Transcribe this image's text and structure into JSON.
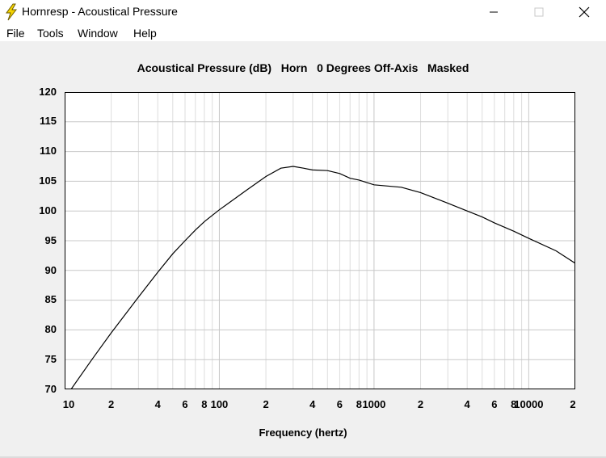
{
  "window": {
    "title": "Hornresp - Acoustical Pressure",
    "icon": "lightning-bolt-icon",
    "controls": [
      "minimize-icon",
      "maximize-icon",
      "close-icon"
    ]
  },
  "menu": {
    "items": [
      "File",
      "Tools",
      "Window",
      "Help"
    ]
  },
  "chart_data": {
    "type": "line",
    "title": "Acoustical Pressure (dB)   Horn   0 Degrees Off-Axis   Masked",
    "xlabel": "Frequency (hertz)",
    "ylabel": "",
    "x_scale": "log",
    "xlim": [
      10,
      20000
    ],
    "ylim": [
      70,
      120
    ],
    "y_ticks": [
      "120",
      "115",
      "110",
      "105",
      "100",
      "95",
      "90",
      "85",
      "80",
      "75",
      "70"
    ],
    "x_tick_labels": [
      {
        "value": 10,
        "label": "10"
      },
      {
        "value": 20,
        "label": "2"
      },
      {
        "value": 40,
        "label": "4"
      },
      {
        "value": 60,
        "label": "6"
      },
      {
        "value": 80,
        "label": "8"
      },
      {
        "value": 100,
        "label": "100"
      },
      {
        "value": 200,
        "label": "2"
      },
      {
        "value": 400,
        "label": "4"
      },
      {
        "value": 600,
        "label": "6"
      },
      {
        "value": 800,
        "label": "8"
      },
      {
        "value": 1000,
        "label": "1000"
      },
      {
        "value": 2000,
        "label": "2"
      },
      {
        "value": 4000,
        "label": "4"
      },
      {
        "value": 6000,
        "label": "6"
      },
      {
        "value": 8000,
        "label": "8"
      },
      {
        "value": 10000,
        "label": "10000"
      },
      {
        "value": 20000,
        "label": "2"
      }
    ],
    "grid": true,
    "line_color": "#000000",
    "series": [
      {
        "x": [
          11,
          15,
          20,
          30,
          40,
          50,
          60,
          70,
          80,
          100,
          150,
          200,
          250,
          300,
          350,
          400,
          500,
          600,
          700,
          800,
          1000,
          1500,
          2000,
          3000,
          4000,
          5000,
          6000,
          8000,
          10000,
          15000,
          20000
        ],
        "values": [
          70,
          75,
          79.5,
          85.5,
          89.7,
          92.8,
          95.0,
          96.8,
          98.2,
          100.2,
          103.5,
          105.8,
          107.2,
          107.5,
          107.2,
          106.9,
          106.8,
          106.3,
          105.5,
          105.2,
          104.4,
          104.0,
          103.1,
          101.3,
          100.0,
          99.0,
          98.0,
          96.6,
          95.4,
          93.3,
          91.2
        ]
      }
    ]
  }
}
